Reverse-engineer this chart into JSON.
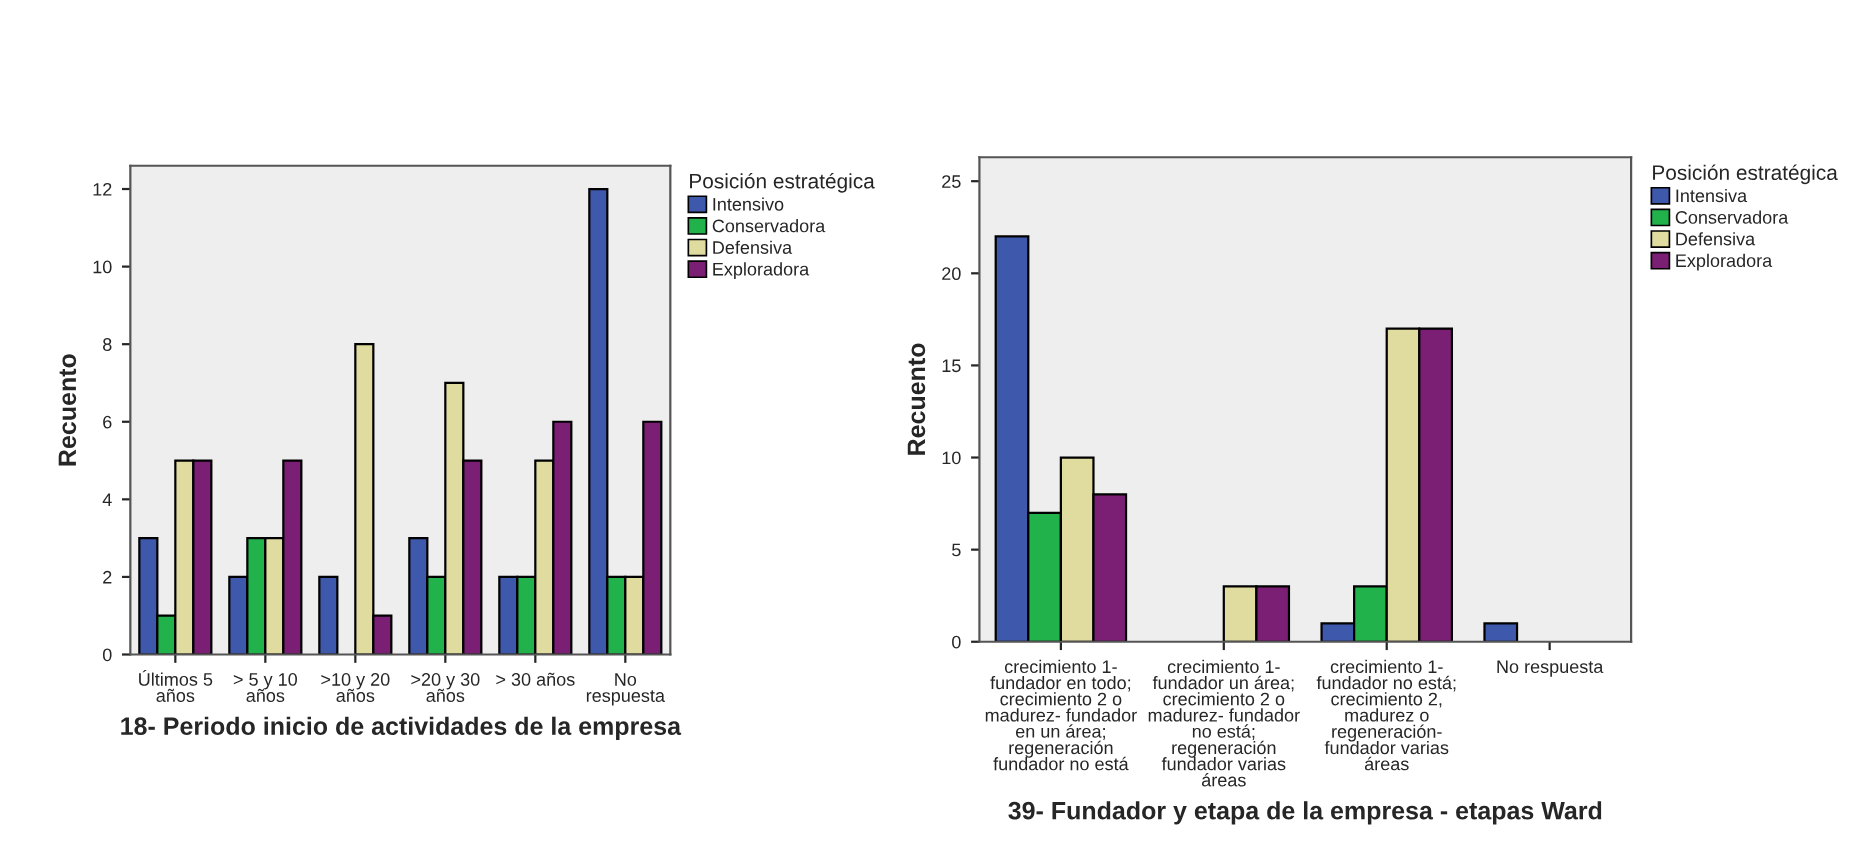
{
  "chart_data": [
    {
      "type": "bar",
      "xlabel": "18- Periodo inicio de actividades de la empresa",
      "ylabel": "Recuento",
      "legend_title": "Posición estratégica",
      "legend": "top right",
      "grid": false,
      "categories": [
        "Últimos 5\naños",
        "> 5 y 10\naños",
        ">10 y 20\naños",
        ">20 y 30\naños",
        "> 30 años",
        "No\nrespuesta"
      ],
      "ylim": [
        0,
        12.6
      ],
      "yticks": [
        0,
        2,
        4,
        6,
        8,
        10,
        12
      ],
      "series": [
        {
          "name": "Intensivo",
          "color": "#3e58ac",
          "values": [
            3,
            2,
            2,
            3,
            2,
            12
          ]
        },
        {
          "name": "Conservadora",
          "color": "#21b24b",
          "values": [
            1,
            3,
            null,
            2,
            2,
            2
          ]
        },
        {
          "name": "Defensiva",
          "color": "#e0dca0",
          "values": [
            5,
            3,
            8,
            7,
            5,
            2
          ]
        },
        {
          "name": "Exploradora",
          "color": "#7b1f74",
          "values": [
            5,
            5,
            1,
            5,
            6,
            6
          ]
        }
      ]
    },
    {
      "type": "bar",
      "xlabel": "39- Fundador y etapa de la empresa - etapas Ward",
      "ylabel": "Recuento",
      "legend_title": "Posición estratégica",
      "legend": "top right",
      "grid": false,
      "categories": [
        "crecimiento 1-\nfundador en todo;\ncrecimiento 2 o\nmadurez- fundador\nen un área;\nregeneración\nfundador no está",
        "crecimiento 1-\nfundador un área;\ncrecimiento 2 o\nmadurez- fundador\nno está;\nregeneración\nfundador varias\náreas",
        "crecimiento 1-\nfundador no está;\ncrecimiento 2,\nmadurez o\nregeneración-\nfundador varias\náreas",
        "No respuesta"
      ],
      "ylim": [
        0,
        26.3
      ],
      "yticks": [
        0,
        5,
        10,
        15,
        20,
        25
      ],
      "series": [
        {
          "name": "Intensiva",
          "color": "#3e58ac",
          "values": [
            22,
            null,
            1,
            1
          ]
        },
        {
          "name": "Conservadora",
          "color": "#21b24b",
          "values": [
            7,
            null,
            3,
            null
          ]
        },
        {
          "name": "Defensiva",
          "color": "#e0dca0",
          "values": [
            10,
            3,
            17,
            null
          ]
        },
        {
          "name": "Exploradora",
          "color": "#7b1f74",
          "values": [
            8,
            3,
            17,
            null
          ]
        }
      ]
    }
  ]
}
